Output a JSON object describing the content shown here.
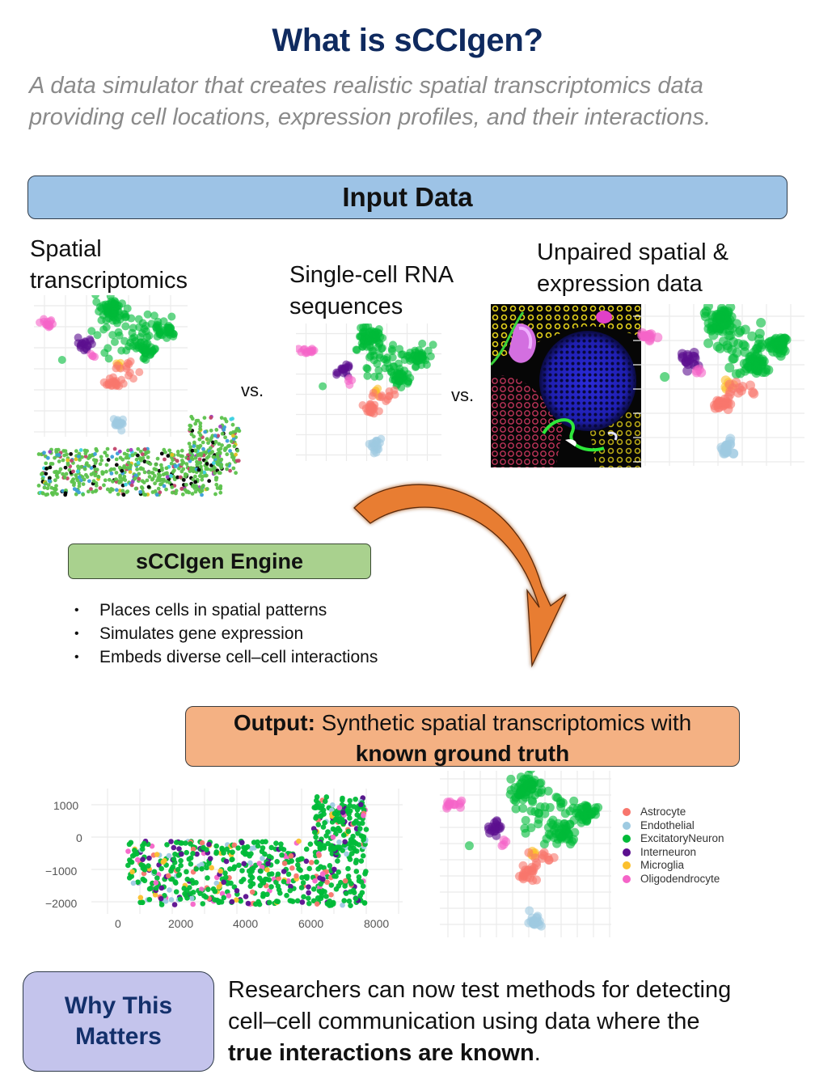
{
  "header": {
    "title": "What is sCCIgen?",
    "subtitle_line1": "A data simulator that creates realistic spatial transcriptomics data",
    "subtitle_line2": "providing cell locations, expression profiles, and their interactions."
  },
  "input_section": {
    "label": "Input Data",
    "columns": [
      {
        "label_line1": "Spatial",
        "label_line2": "transcriptomics"
      },
      {
        "label_line1": "Single-cell RNA",
        "label_line2": "sequences"
      },
      {
        "label_line1": "Unpaired spatial &",
        "label_line2": "expression data"
      }
    ],
    "separator": "vs."
  },
  "engine": {
    "label": "sCCIgen Engine",
    "bullets": [
      "Places cells in spatial patterns",
      "Simulates gene expression",
      "Embeds diverse cell–cell interactions"
    ]
  },
  "output": {
    "label_bold": "Output:",
    "label_text": " Synthetic spatial transcriptomics with",
    "label_line2": "known ground truth"
  },
  "why": {
    "label_line1": "Why This",
    "label_line2": "Matters",
    "text_line1": "Researchers can now test methods for detecting",
    "text_line2": "cell–cell communication using data where the",
    "text_bold": "true interactions are known",
    "text_end": "."
  },
  "colors": {
    "title": "#0f2a5f",
    "input_bar": "#9dc3e6",
    "engine_box": "#a9d18e",
    "output_box": "#f4b183",
    "why_box": "#c4c4ec",
    "arrow": "#e87d32"
  },
  "chart_data": [
    {
      "type": "scatter",
      "title": "Output spatial map (synthetic cell locations)",
      "xlabel": "",
      "ylabel": "",
      "xlim": [
        -300,
        8600
      ],
      "ylim": [
        -2200,
        1400
      ],
      "x_ticks": [
        "0",
        "2000",
        "4000",
        "6000",
        "8000"
      ],
      "y_ticks": [
        "1000",
        "0",
        "−1000",
        "−2000"
      ],
      "grid": true,
      "series_regions": [
        {
          "name": "ExcitatoryNeuron",
          "region": "x 300–7600, y −1900–−200 plus x 5800–7600, y −200–1100",
          "share": 0.7
        },
        {
          "name": "Interneuron",
          "share": 0.1
        },
        {
          "name": "Oligodendrocyte",
          "region": "mostly x 6900–7500, y 0–1000",
          "share": 0.05
        },
        {
          "name": "Astrocyte",
          "share": 0.06
        },
        {
          "name": "Microglia",
          "share": 0.04
        },
        {
          "name": "Endothelial",
          "share": 0.05
        }
      ]
    },
    {
      "type": "scatter",
      "title": "Output expression embedding (UMAP-like)",
      "legend_position": "right",
      "legend": [
        "Astrocyte",
        "Endothelial",
        "ExcitatoryNeuron",
        "Interneuron",
        "Microglia",
        "Oligodendrocyte"
      ],
      "legend_colors": [
        "#f8766d",
        "#9ecae1",
        "#00ba38",
        "#5b0f8f",
        "#fbc02d",
        "#f564c8"
      ],
      "clusters": [
        {
          "name": "ExcitatoryNeuron",
          "center": [
            0.62,
            0.22
          ],
          "spread": "large, upper-middle/right"
        },
        {
          "name": "Oligodendrocyte",
          "center": [
            0.1,
            0.24
          ],
          "spread": "small, far left"
        },
        {
          "name": "Interneuron",
          "center": [
            0.32,
            0.38
          ],
          "spread": "small, left-middle"
        },
        {
          "name": "Microglia",
          "center": [
            0.55,
            0.53
          ],
          "spread": "small"
        },
        {
          "name": "Astrocyte",
          "center": [
            0.53,
            0.68
          ],
          "spread": "elongated, below microglia"
        },
        {
          "name": "Endothelial",
          "center": [
            0.55,
            0.93
          ],
          "spread": "small, bottom"
        }
      ]
    }
  ]
}
